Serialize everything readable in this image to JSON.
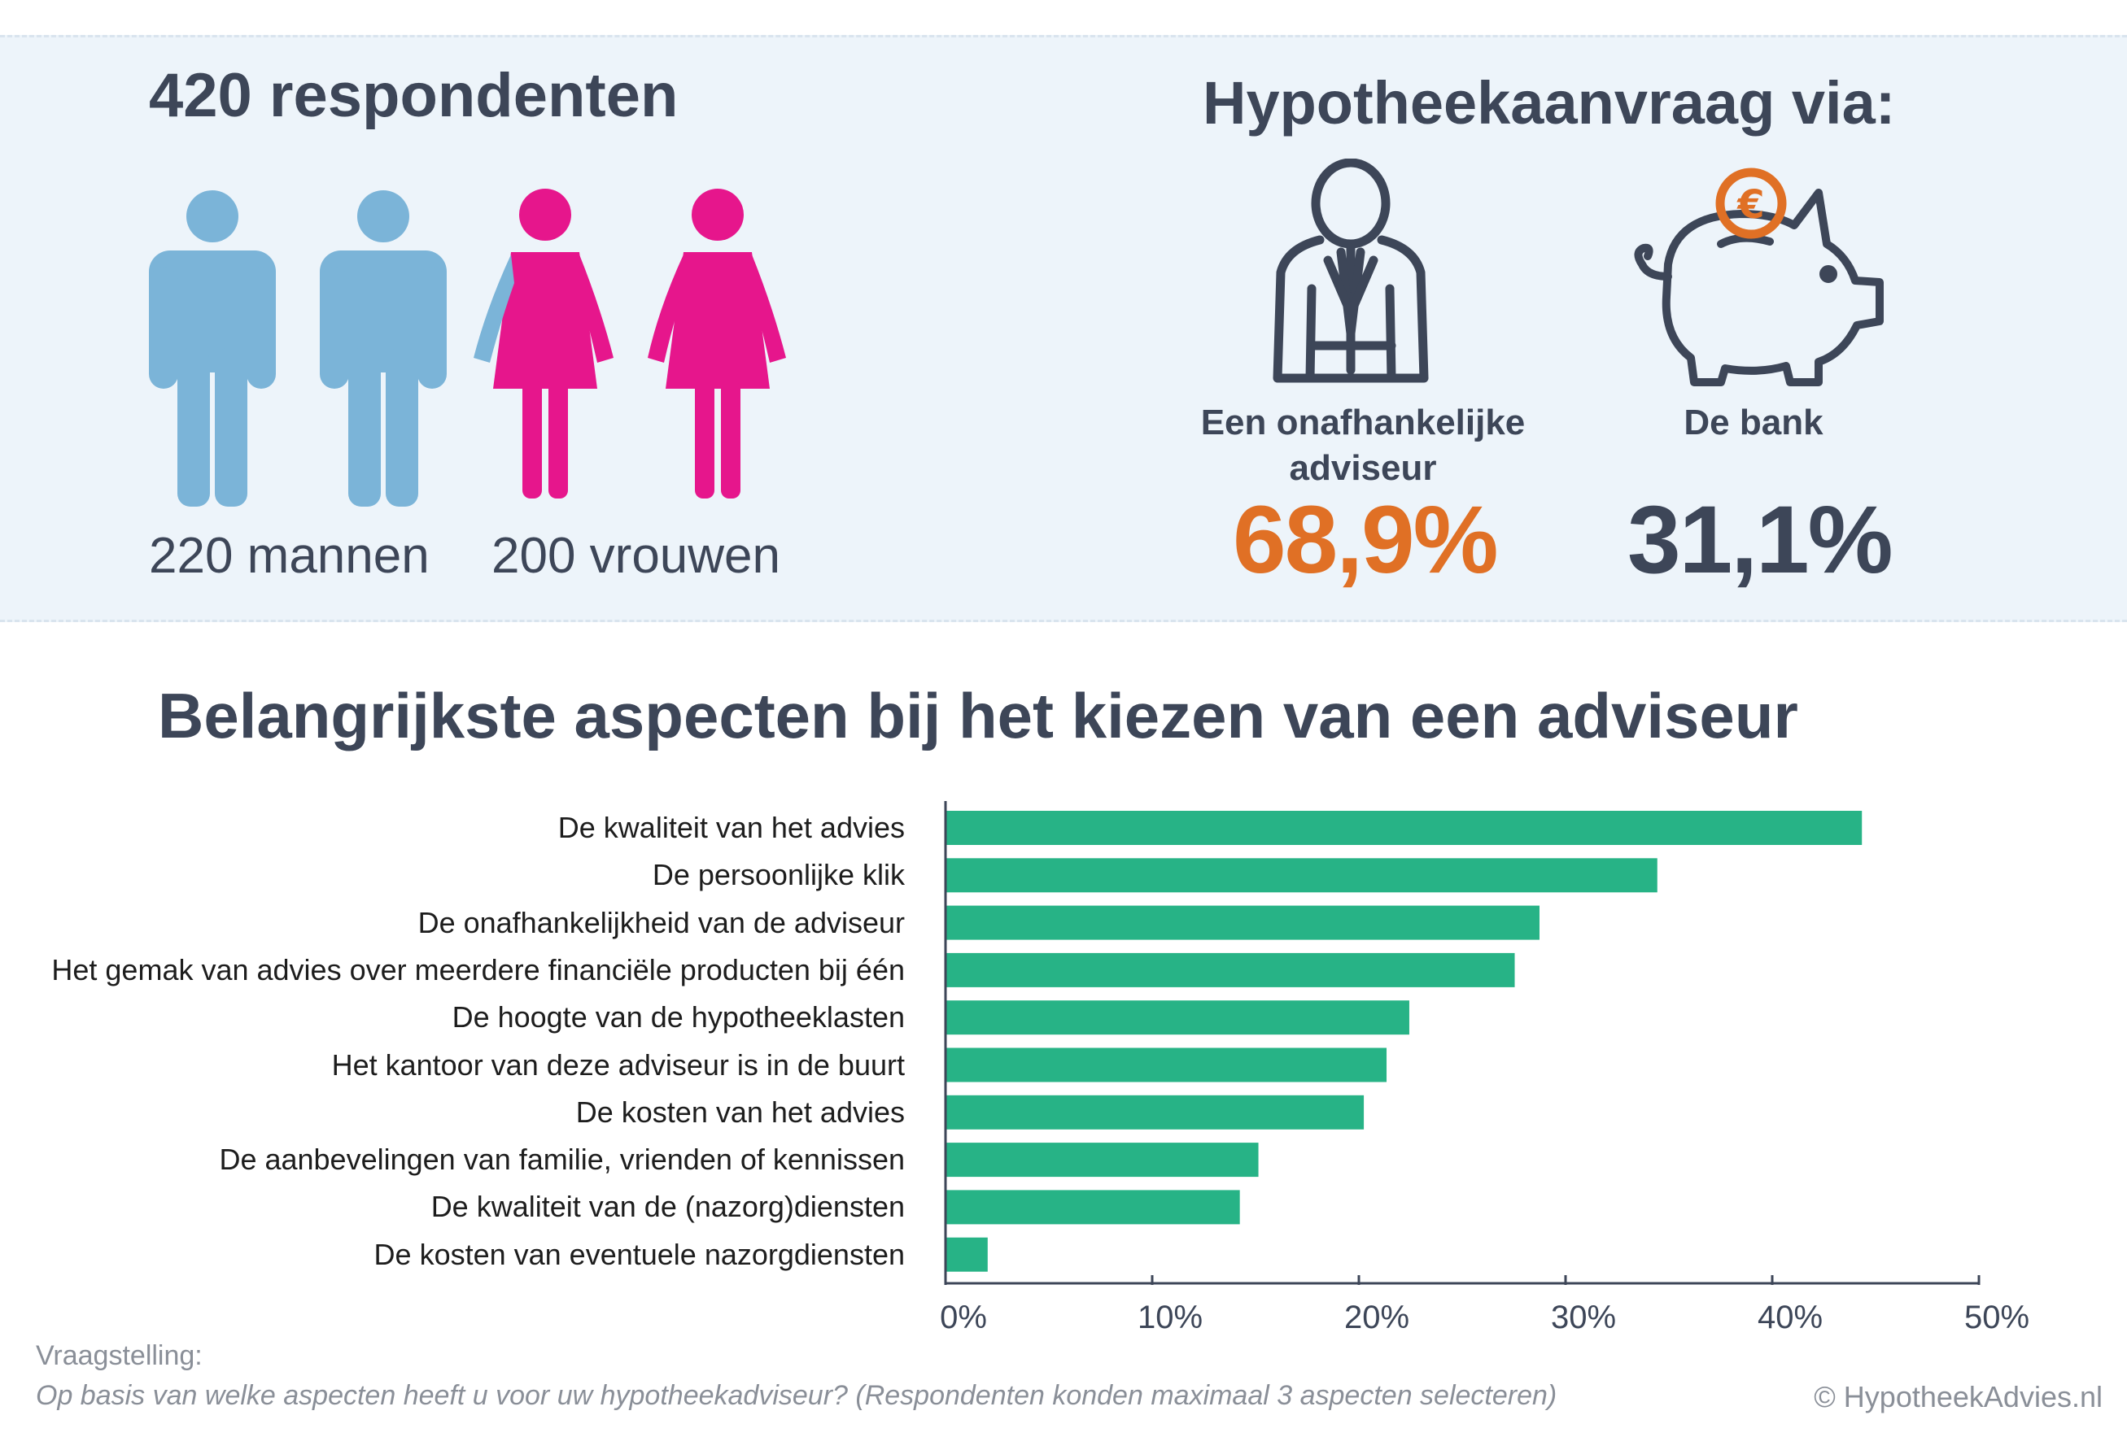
{
  "header": {
    "respondents_title": "420 respondenten",
    "men_label": "220 mannen",
    "women_label": "200 vrouwen",
    "application_title": "Hypotheekaanvraag via:",
    "advisor_label_line1": "Een onafhankelijke",
    "advisor_label_line2": "adviseur",
    "advisor_pct": "68,9%",
    "bank_label": "De bank",
    "bank_pct": "31,1%"
  },
  "icons": {
    "man": "man-icon",
    "woman": "woman-icon",
    "advisor": "advisor-person-icon",
    "piggy": "piggy-bank-euro-icon"
  },
  "colors": {
    "men": "#7bb4d8",
    "women": "#e6168c",
    "accent_orange": "#e07025",
    "bars": "#27b386",
    "dark_text": "#3d4658"
  },
  "chart_data": {
    "type": "bar",
    "orientation": "horizontal",
    "title": "Belangrijkste aspecten bij het kiezen van een adviseur",
    "categories": [
      "De kwaliteit van het advies",
      "De persoonlijke klik",
      "De onafhankelijkheid van de adviseur",
      "Het gemak van advies over meerdere financiële producten bij één",
      "De hoogte van de hypotheeklasten",
      "Het kantoor van deze adviseur is in de buurt",
      "De kosten van het advies",
      "De aanbevelingen van familie, vrienden of kennissen",
      "De kwaliteit van de (nazorg)diensten",
      "De kosten van eventuele nazorgdiensten"
    ],
    "values": [
      44.3,
      34.4,
      28.7,
      27.5,
      22.4,
      21.3,
      20.2,
      15.1,
      14.2,
      2.0
    ],
    "xlim": [
      0,
      50
    ],
    "xticks": [
      "0%",
      "10%",
      "20%",
      "30%",
      "40%",
      "50%"
    ],
    "grid": false,
    "legend": "none"
  },
  "footer": {
    "question_heading": "Vraagstelling:",
    "question_text": "Op basis van welke aspecten heeft u voor uw hypotheekadviseur? (Respondenten konden maximaal 3 aspecten selecteren)",
    "copyright": "© HypotheekAdvies.nl"
  }
}
